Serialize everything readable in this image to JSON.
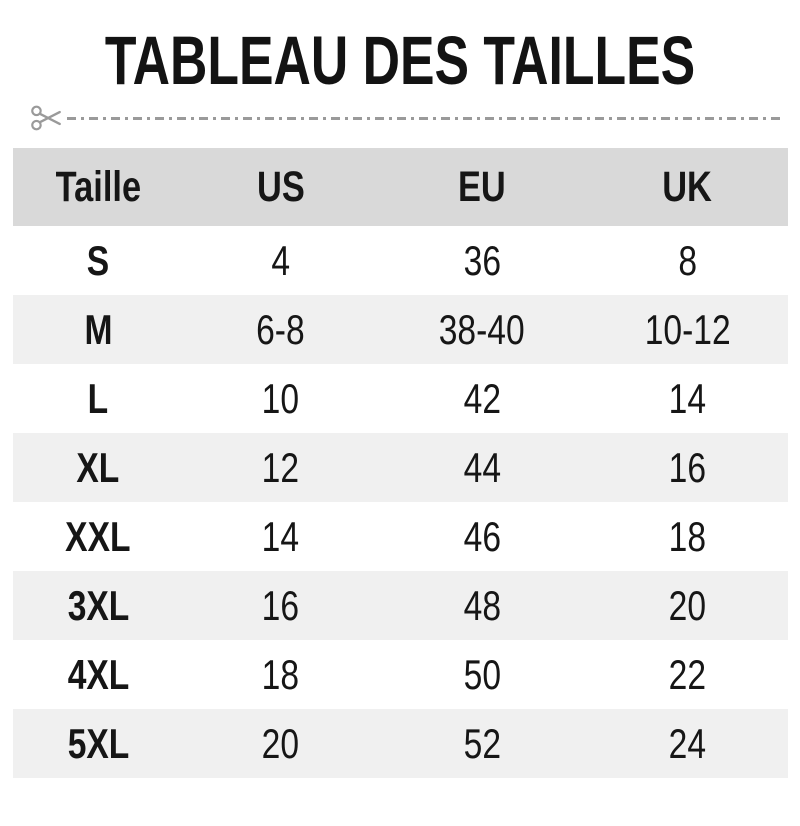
{
  "title": "TABLEAU DES TAILLES",
  "cut_line": {
    "icon": "scissors-icon"
  },
  "chart_data": {
    "type": "table",
    "title": "TABLEAU DES TAILLES",
    "columns": [
      "Taille",
      "US",
      "EU",
      "UK"
    ],
    "rows": [
      [
        "S",
        "4",
        "36",
        "8"
      ],
      [
        "M",
        "6-8",
        "38-40",
        "10-12"
      ],
      [
        "L",
        "10",
        "42",
        "14"
      ],
      [
        "XL",
        "12",
        "44",
        "16"
      ],
      [
        "XXL",
        "14",
        "46",
        "18"
      ],
      [
        "3XL",
        "16",
        "48",
        "20"
      ],
      [
        "4XL",
        "18",
        "50",
        "22"
      ],
      [
        "5XL",
        "20",
        "52",
        "24"
      ]
    ]
  },
  "colors": {
    "header_bg": "#d9d9d9",
    "row_bg": "#ffffff",
    "row_alt_bg": "#f0f0f0",
    "text": "#161616",
    "cut_line": "#9a9a9a"
  }
}
